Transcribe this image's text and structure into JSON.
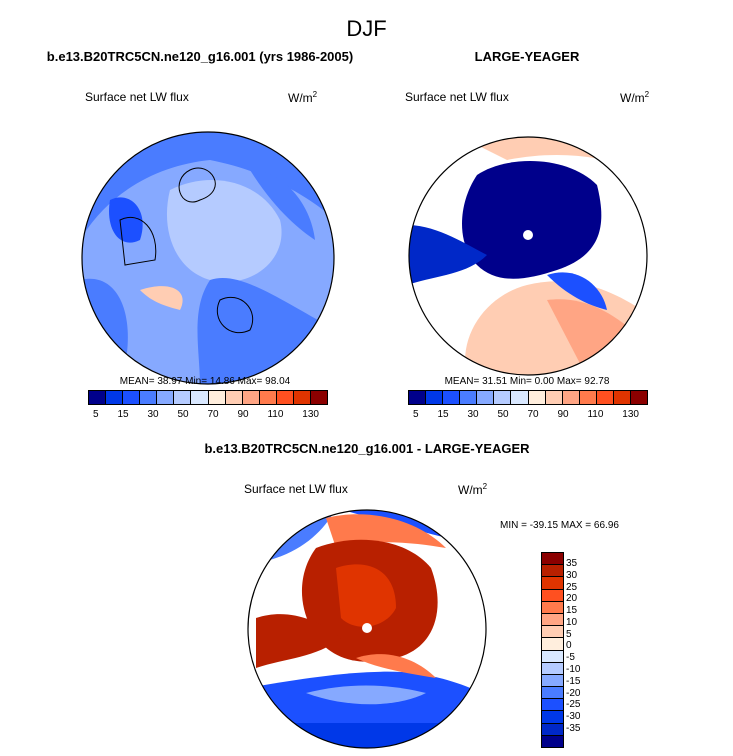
{
  "title": "DJF",
  "panels": [
    {
      "subtitle": "b.e13.B20TRC5CN.ne120_g16.001 (yrs 1986-2005)",
      "variable": "Surface net LW flux",
      "units": "W/m",
      "units_exp": "2",
      "stats": "MEAN=  38.97  Min=  14.86  Max=  98.04"
    },
    {
      "subtitle": "LARGE-YEAGER",
      "variable": "Surface net LW flux",
      "units": "W/m",
      "units_exp": "2",
      "stats": "MEAN=  31.51  Min=   0.00  Max=  92.78"
    },
    {
      "subtitle": "b.e13.B20TRC5CN.ne120_g16.001 - LARGE-YEAGER",
      "variable": "Surface net LW flux",
      "units": "W/m",
      "units_exp": "2",
      "stats": "MIN = -39.15 MAX =  66.96"
    }
  ],
  "colorbar_abs": {
    "labels": [
      "5",
      "15",
      "30",
      "50",
      "70",
      "90",
      "110",
      "130"
    ],
    "colors": [
      "#00008b",
      "#0028c8",
      "#0038e8",
      "#1c50ff",
      "#4a7cff",
      "#86a9ff",
      "#b5cbff",
      "#d9e8ff",
      "#ffeedd",
      "#ffcdb3",
      "#ffa584",
      "#ff7a4c",
      "#ff5020",
      "#e03400",
      "#b82000",
      "#8b0000"
    ]
  },
  "colorbar_diff": {
    "labels": [
      "35",
      "30",
      "25",
      "20",
      "15",
      "10",
      "5",
      "0",
      "-5",
      "-10",
      "-15",
      "-20",
      "-25",
      "-30",
      "-35"
    ],
    "colors": [
      "#8b0000",
      "#b82000",
      "#e03400",
      "#ff5020",
      "#ff7a4c",
      "#ffa584",
      "#ffcdb3",
      "#ffeedd",
      "#d9e8ff",
      "#b5cbff",
      "#86a9ff",
      "#4a7cff",
      "#1c50ff",
      "#0038e8",
      "#0028c8",
      "#00008b"
    ]
  }
}
